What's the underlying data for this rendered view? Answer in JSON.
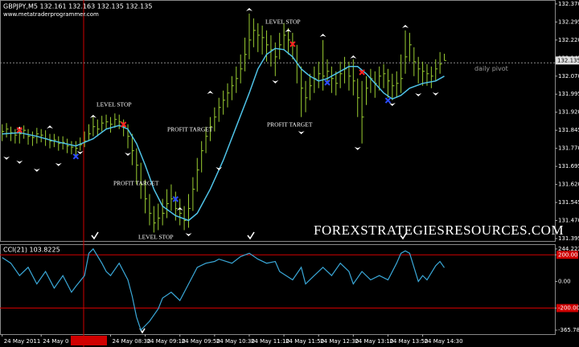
{
  "chart_data": [
    {
      "type": "ohlc",
      "title": "GBPJPY,M5  132.161 132.163 132.135 132.135",
      "subtitle": "www.metatraderprogrammer.com",
      "watermark": "FOREXSTRATEGIESRESOURCES.COM",
      "color": "#9acd32",
      "high": [
        131.87,
        131.875,
        131.86,
        131.85,
        131.86,
        131.865,
        131.85,
        131.84,
        131.855,
        131.85,
        131.845,
        131.83,
        131.83,
        131.82,
        131.82,
        131.81,
        131.8,
        131.8,
        131.815,
        131.84,
        131.87,
        131.9,
        131.89,
        131.905,
        131.91,
        131.9,
        131.915,
        131.91,
        131.89,
        131.87,
        131.83,
        131.77,
        131.71,
        131.64,
        131.58,
        131.53,
        131.54,
        131.56,
        131.6,
        131.62,
        131.59,
        131.56,
        131.53,
        131.58,
        131.65,
        131.73,
        131.8,
        131.86,
        131.9,
        131.94,
        131.98,
        132.01,
        132.04,
        132.07,
        132.11,
        132.16,
        132.23,
        132.33,
        132.31,
        132.29,
        132.28,
        132.26,
        132.24,
        132.21,
        132.25,
        132.29,
        132.27,
        132.25,
        132.2,
        132.11,
        132.05,
        132.08,
        132.11,
        132.13,
        132.22,
        132.14,
        132.11,
        132.09,
        132.13,
        132.15,
        132.13,
        132.14,
        132.06,
        132.05,
        132.07,
        132.1,
        132.09,
        132.11,
        132.12,
        132.1,
        132.08,
        132.09,
        132.16,
        132.26,
        132.25,
        132.19,
        132.15,
        132.13,
        132.12,
        132.11,
        132.14,
        132.17,
        132.163
      ],
      "low": [
        131.8,
        131.815,
        131.8,
        131.79,
        131.79,
        131.81,
        131.785,
        131.78,
        131.79,
        131.795,
        131.78,
        131.77,
        131.775,
        131.76,
        131.765,
        131.75,
        131.745,
        131.74,
        131.76,
        131.775,
        131.8,
        131.82,
        131.82,
        131.84,
        131.85,
        131.835,
        131.855,
        131.85,
        131.82,
        131.77,
        131.7,
        131.62,
        131.56,
        131.5,
        131.45,
        131.42,
        131.43,
        131.45,
        131.48,
        131.51,
        131.47,
        131.45,
        131.43,
        131.44,
        131.51,
        131.59,
        131.67,
        131.75,
        131.8,
        131.84,
        131.88,
        131.91,
        131.94,
        131.97,
        132.0,
        132.04,
        132.09,
        132.14,
        132.19,
        132.17,
        132.16,
        132.13,
        132.11,
        132.07,
        132.14,
        132.18,
        132.16,
        132.14,
        132.04,
        131.9,
        131.92,
        131.97,
        132.0,
        132.02,
        132.01,
        132.04,
        132.0,
        131.99,
        132.02,
        132.04,
        132.01,
        131.99,
        131.9,
        131.79,
        131.95,
        132.0,
        131.98,
        132.01,
        132.02,
        131.98,
        131.97,
        131.98,
        132.0,
        132.08,
        132.13,
        132.07,
        132.04,
        132.03,
        132.03,
        132.02,
        132.05,
        132.08,
        132.135
      ],
      "close": [
        131.84,
        131.85,
        131.835,
        131.825,
        131.83,
        131.845,
        131.82,
        131.815,
        131.83,
        131.825,
        131.81,
        131.8,
        131.805,
        131.79,
        131.795,
        131.78,
        131.775,
        131.77,
        131.785,
        131.8,
        131.83,
        131.86,
        131.85,
        131.875,
        131.88,
        131.87,
        131.89,
        131.88,
        131.86,
        131.82,
        131.76,
        131.7,
        131.62,
        131.56,
        131.5,
        131.46,
        131.48,
        131.5,
        131.54,
        131.56,
        131.52,
        131.5,
        131.47,
        131.52,
        131.6,
        131.68,
        131.76,
        131.82,
        131.86,
        131.9,
        131.94,
        131.97,
        132.0,
        132.03,
        132.06,
        132.1,
        132.16,
        132.22,
        132.26,
        132.24,
        132.23,
        132.2,
        132.18,
        132.15,
        132.2,
        132.24,
        132.22,
        132.21,
        132.12,
        132.02,
        131.98,
        132.03,
        132.06,
        132.08,
        132.07,
        132.09,
        132.06,
        132.04,
        132.08,
        132.1,
        132.07,
        132.05,
        131.98,
        131.9,
        132.02,
        132.06,
        132.04,
        132.07,
        132.08,
        132.05,
        132.03,
        132.04,
        132.06,
        132.15,
        132.2,
        132.13,
        132.1,
        132.09,
        132.08,
        132.07,
        132.1,
        132.12,
        132.135
      ],
      "ma": {
        "color": "#4fc3e8",
        "x": [
          0,
          4,
          8,
          12,
          17,
          21,
          24,
          27,
          29,
          31,
          33,
          35,
          37,
          40,
          43,
          45,
          48,
          51,
          54,
          57,
          59,
          61,
          63,
          65,
          67,
          69,
          71,
          73,
          75,
          78,
          80,
          82,
          84,
          86,
          88,
          90,
          92,
          94,
          97,
          100,
          102
        ],
        "values": [
          131.83,
          131.835,
          131.82,
          131.8,
          131.78,
          131.81,
          131.85,
          131.865,
          131.85,
          131.79,
          131.7,
          131.6,
          131.53,
          131.49,
          131.47,
          131.5,
          131.6,
          131.72,
          131.86,
          132.0,
          132.1,
          132.16,
          132.185,
          132.18,
          132.15,
          132.1,
          132.07,
          132.05,
          132.06,
          132.09,
          132.11,
          132.11,
          132.08,
          132.04,
          132.0,
          131.975,
          131.99,
          132.02,
          132.04,
          132.05,
          132.07
        ]
      },
      "up_arrows": {
        "color": "#ffffff",
        "x": [
          4,
          11,
          21,
          41,
          48,
          57,
          66,
          74,
          81,
          93
        ],
        "values": [
          131.846,
          131.852,
          131.896,
          131.512,
          131.996,
          132.34,
          132.253,
          132.233,
          132.143,
          132.27
        ]
      },
      "down_arrows": {
        "color": "#ffffff",
        "x": [
          1,
          4,
          8,
          13,
          18,
          29,
          43,
          50,
          63,
          69,
          82,
          90,
          96,
          100
        ],
        "values": [
          131.736,
          131.719,
          131.686,
          131.709,
          131.759,
          131.752,
          131.418,
          131.692,
          132.053,
          131.842,
          131.776,
          131.959,
          131.999,
          132.003
        ]
      },
      "buy_signals": {
        "color": "#2a4cff",
        "x": [
          17,
          40,
          75,
          89
        ],
        "values": [
          131.736,
          131.559,
          132.043,
          131.969
        ]
      },
      "sell_signals": {
        "color": "#ff2020",
        "x": [
          4,
          28,
          67,
          83
        ],
        "values": [
          131.846,
          131.869,
          132.203,
          132.086
        ]
      },
      "annotations": [
        "LEVEL STOP",
        "LEVEL STOP",
        "LEVEL STOP",
        "PROFIT TARGET",
        "PROFIT TARGET",
        "PROFIT TARGET"
      ],
      "pivot": {
        "label": "daily pivot",
        "value": 132.125
      },
      "last_price": 132.135,
      "xlim": [
        -0.5,
        127.5
      ],
      "ylim": [
        131.385,
        132.383
      ],
      "yticks": [
        {
          "value": 132.37,
          "label": "132.370"
        },
        132.295,
        {
          "value": 132.22,
          "label": "132.220"
        },
        132.145,
        {
          "value": 132.07,
          "label": "132.070"
        },
        131.995,
        {
          "value": 131.92,
          "label": "131.920"
        },
        131.845,
        {
          "value": 131.77,
          "label": "131.770"
        },
        131.695,
        {
          "value": 131.62,
          "label": "131.620"
        },
        131.545,
        {
          "value": 131.47,
          "label": "131.470"
        },
        131.395
      ]
    },
    {
      "type": "line",
      "title": "CCI(21) 103.8225",
      "color": "#3aa8d8",
      "level_color": "#d00000",
      "levels": [
        200,
        -200
      ],
      "x": [
        0,
        2,
        4,
        6,
        8,
        10,
        12,
        14,
        16,
        17,
        19,
        20,
        21,
        23,
        24,
        25,
        27,
        29,
        30,
        31,
        32,
        34,
        36,
        37,
        39,
        41,
        43,
        45,
        47,
        49,
        50,
        53,
        55,
        57,
        59,
        61,
        63,
        64,
        67,
        69,
        70,
        72,
        74,
        76,
        78,
        80,
        81,
        83,
        85,
        87,
        89,
        91,
        92,
        93,
        94,
        95,
        96,
        97,
        98,
        100,
        101,
        102
      ],
      "values": [
        180,
        137,
        44,
        106,
        -19,
        75,
        -50,
        44,
        -81,
        -37,
        44,
        212,
        244.2224,
        137,
        75,
        44,
        137,
        12,
        -112,
        -268,
        -365.7844,
        -299,
        -206,
        -125,
        -81,
        -143,
        -19,
        106,
        137,
        150,
        168,
        137,
        187,
        212,
        168,
        137,
        150,
        75,
        12,
        106,
        -19,
        44,
        106,
        44,
        137,
        75,
        -19,
        75,
        12,
        44,
        12,
        137,
        212,
        230,
        212,
        106,
        0,
        44,
        12,
        118,
        150,
        103.8225
      ],
      "xlim": [
        -0.5,
        127.5
      ],
      "ylim": [
        -396,
        280
      ],
      "yticks": [
        244.2224,
        {
          "value": 200,
          "label": "200.00"
        },
        {
          "value": 0,
          "label": "0.00"
        },
        {
          "value": -200,
          "label": "-200.00"
        },
        -365.7844
      ],
      "xticks": [
        {
          "value": 0,
          "label": "24 May 2011"
        },
        {
          "value": 9,
          "label": "24 May 0"
        },
        {
          "value": 25,
          "label": "24 May 08:30"
        },
        {
          "value": 33,
          "label": "24 May 09:10"
        },
        {
          "value": 41,
          "label": "24 May 09:50"
        },
        {
          "value": 49,
          "label": "24 May 10:30"
        },
        {
          "value": 57,
          "label": "24 May 11:10"
        },
        {
          "value": 65,
          "label": "24 May 11:50"
        },
        {
          "value": 73,
          "label": "24 May 12:30"
        },
        {
          "value": 81,
          "label": "24 May 13:10"
        },
        {
          "value": 89,
          "label": "24 May 13:50"
        },
        {
          "value": 97,
          "label": "24 May 14:30"
        }
      ]
    }
  ]
}
